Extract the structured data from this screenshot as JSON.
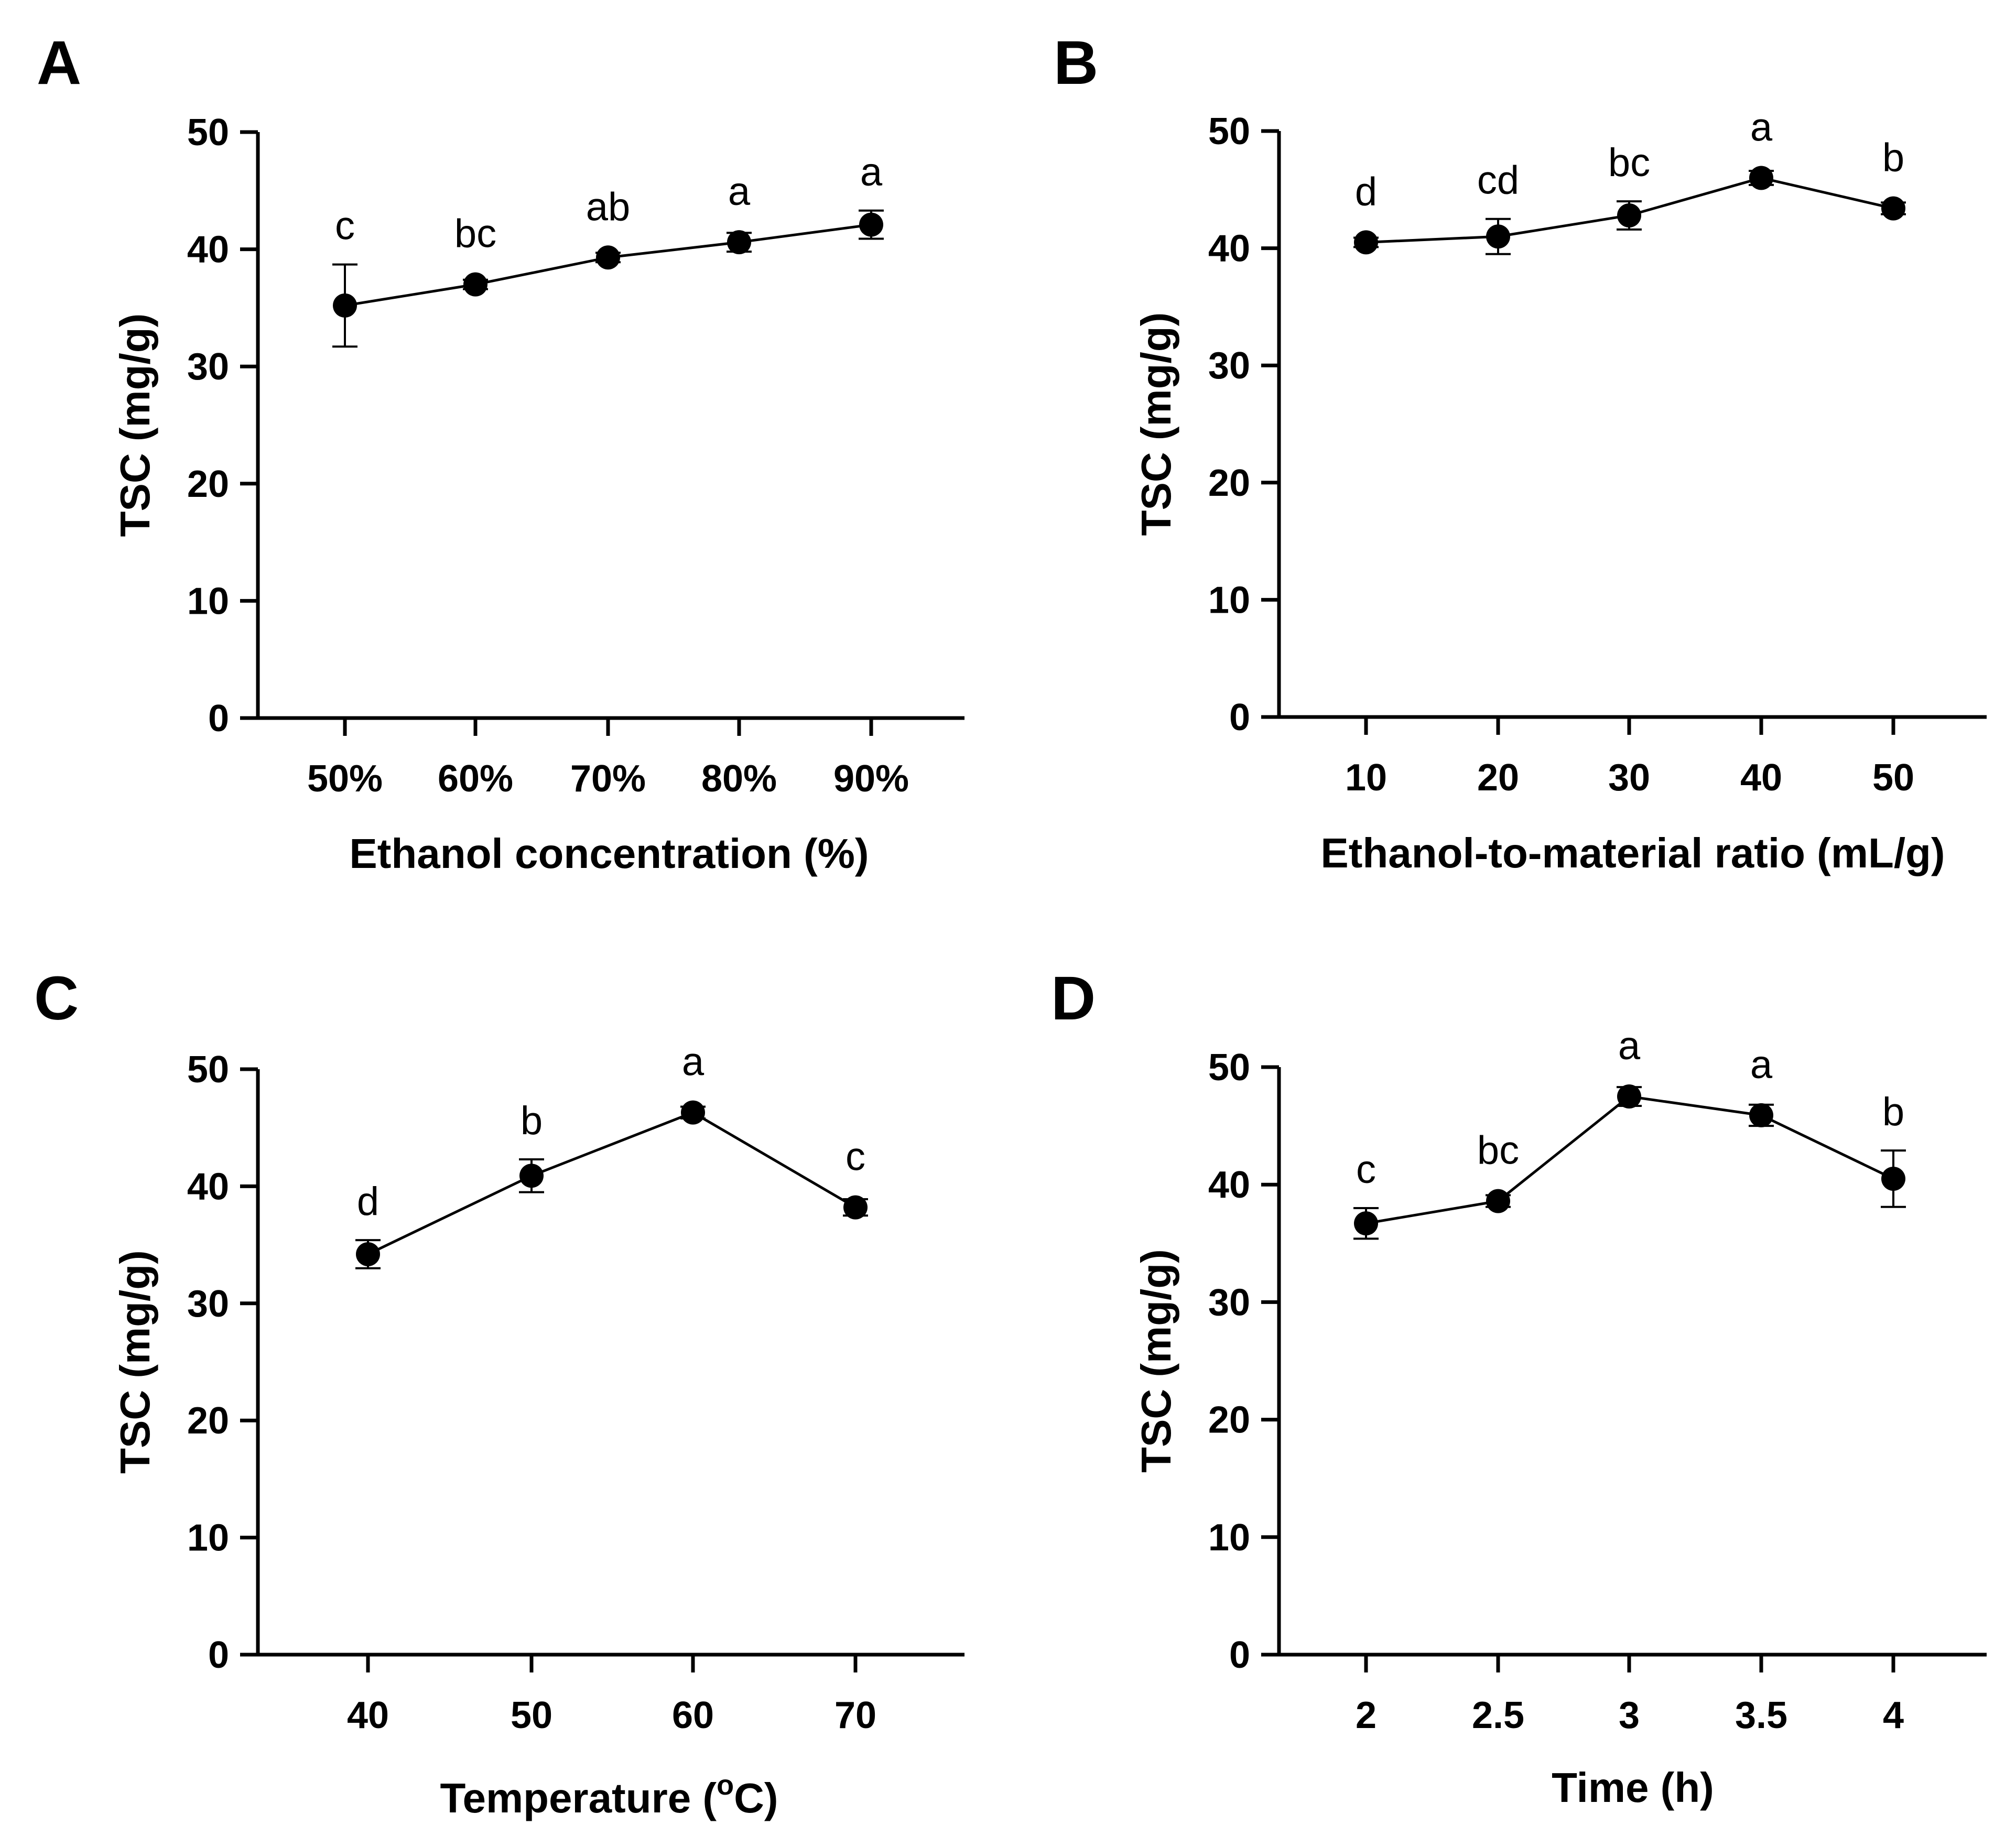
{
  "chart_data": [
    {
      "panel": "A",
      "type": "line",
      "xlabel": "Ethanol concentration (%)",
      "ylabel": "TSC (mg/g)",
      "ylim": [
        0,
        50
      ],
      "yticks": [
        "0",
        "10",
        "20",
        "30",
        "40",
        "50"
      ],
      "categories": [
        "50%",
        "60%",
        "70%",
        "80%",
        "90%"
      ],
      "values": [
        35.2,
        37.0,
        39.3,
        40.6,
        42.1
      ],
      "errors": [
        3.5,
        0.4,
        0.4,
        0.8,
        1.2
      ],
      "sig_letters": [
        "c",
        "bc",
        "ab",
        "a",
        "a"
      ]
    },
    {
      "panel": "B",
      "type": "line",
      "xlabel": "Ethanol-to-material ratio (mL/g)",
      "ylabel": "TSC (mg/g)",
      "ylim": [
        0,
        50
      ],
      "yticks": [
        "0",
        "10",
        "20",
        "30",
        "40",
        "50"
      ],
      "categories": [
        "10",
        "20",
        "30",
        "40",
        "50"
      ],
      "values": [
        40.5,
        41.0,
        42.8,
        46.0,
        43.4
      ],
      "errors": [
        0.4,
        1.5,
        1.2,
        0.6,
        0.5
      ],
      "sig_letters": [
        "d",
        "cd",
        "bc",
        "a",
        "b"
      ]
    },
    {
      "panel": "C",
      "type": "line",
      "xlabel_main": "Temperature (",
      "xlabel_sup": "o",
      "xlabel_end": "C)",
      "ylabel": "TSC (mg/g)",
      "ylim": [
        0,
        50
      ],
      "yticks": [
        "0",
        "10",
        "20",
        "30",
        "40",
        "50"
      ],
      "categories": [
        "40",
        "50",
        "60",
        "70"
      ],
      "values": [
        34.2,
        40.9,
        46.3,
        38.2
      ],
      "errors": [
        1.2,
        1.4,
        0.5,
        0.7
      ],
      "sig_letters": [
        "d",
        "b",
        "a",
        "c"
      ]
    },
    {
      "panel": "D",
      "type": "line",
      "xlabel": "Time (h)",
      "ylabel": "TSC (mg/g)",
      "ylim": [
        0,
        50
      ],
      "yticks": [
        "0",
        "10",
        "20",
        "30",
        "40",
        "50"
      ],
      "categories": [
        "2",
        "2.5",
        "3",
        "3.5",
        "4"
      ],
      "values": [
        36.7,
        38.6,
        47.5,
        45.9,
        40.5
      ],
      "errors": [
        1.3,
        0.5,
        0.8,
        0.9,
        2.4
      ],
      "sig_letters": [
        "c",
        "bc",
        "a",
        "a",
        "b"
      ]
    }
  ]
}
